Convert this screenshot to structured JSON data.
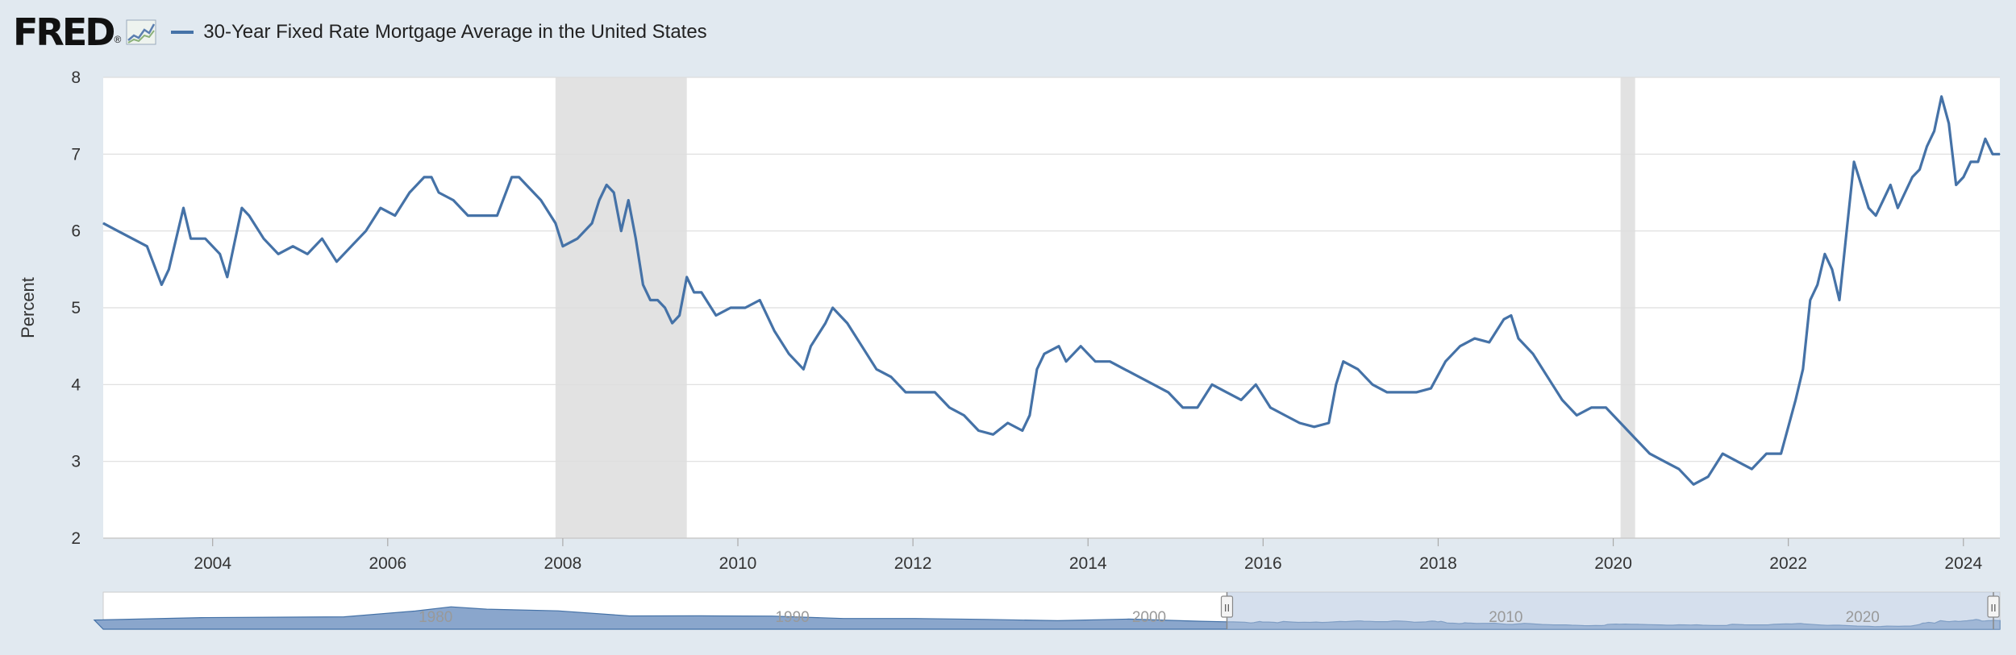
{
  "header": {
    "logo": "FRED",
    "logo_mark": "®",
    "legend_label": "30-Year Fixed Rate Mortgage Average in the United States"
  },
  "colors": {
    "series": "#4572a7",
    "recession": "#e2e2e2",
    "grid": "#dddddd",
    "background": "#e1e9f0",
    "plot": "#ffffff",
    "navigator_fill": "#8aa6cc",
    "navigator_selected": "#b3c5df"
  },
  "chart_data": {
    "type": "line",
    "title": "30-Year Fixed Rate Mortgage Average in the United States",
    "xlabel": "",
    "ylabel": "Percent",
    "xlim": [
      "2002-10",
      "2024-06"
    ],
    "ylim": [
      2,
      8
    ],
    "grid": true,
    "y_ticks": [
      2,
      3,
      4,
      5,
      6,
      7,
      8
    ],
    "x_ticks": [
      "2004",
      "2006",
      "2008",
      "2010",
      "2012",
      "2014",
      "2016",
      "2018",
      "2020",
      "2022",
      "2024"
    ],
    "recessions": [
      [
        "2007-12",
        "2009-06"
      ],
      [
        "2020-02",
        "2020-04"
      ]
    ],
    "series": [
      {
        "name": "30-Year Fixed Rate Mortgage Average in the United States",
        "x": [
          "2002-10",
          "2002-12",
          "2003-02",
          "2003-04",
          "2003-06",
          "2003-07",
          "2003-09",
          "2003-10",
          "2003-12",
          "2004-02",
          "2004-03",
          "2004-05",
          "2004-06",
          "2004-08",
          "2004-10",
          "2004-12",
          "2005-02",
          "2005-04",
          "2005-06",
          "2005-08",
          "2005-10",
          "2005-12",
          "2006-02",
          "2006-04",
          "2006-06",
          "2006-07",
          "2006-08",
          "2006-10",
          "2006-12",
          "2007-02",
          "2007-04",
          "2007-06",
          "2007-07",
          "2007-08",
          "2007-10",
          "2007-12",
          "2008-01",
          "2008-03",
          "2008-05",
          "2008-06",
          "2008-07",
          "2008-08",
          "2008-09",
          "2008-10",
          "2008-11",
          "2008-12",
          "2009-01",
          "2009-02",
          "2009-03",
          "2009-04",
          "2009-05",
          "2009-06",
          "2009-07",
          "2009-08",
          "2009-10",
          "2009-12",
          "2010-02",
          "2010-04",
          "2010-06",
          "2010-08",
          "2010-10",
          "2010-11",
          "2011-01",
          "2011-02",
          "2011-04",
          "2011-06",
          "2011-08",
          "2011-10",
          "2011-12",
          "2012-02",
          "2012-04",
          "2012-06",
          "2012-08",
          "2012-10",
          "2012-12",
          "2013-02",
          "2013-04",
          "2013-05",
          "2013-06",
          "2013-07",
          "2013-09",
          "2013-10",
          "2013-12",
          "2014-02",
          "2014-04",
          "2014-06",
          "2014-08",
          "2014-10",
          "2014-12",
          "2015-02",
          "2015-04",
          "2015-06",
          "2015-08",
          "2015-10",
          "2015-12",
          "2016-02",
          "2016-04",
          "2016-06",
          "2016-08",
          "2016-10",
          "2016-11",
          "2016-12",
          "2017-02",
          "2017-04",
          "2017-06",
          "2017-08",
          "2017-10",
          "2017-12",
          "2018-02",
          "2018-04",
          "2018-06",
          "2018-08",
          "2018-10",
          "2018-11",
          "2018-12",
          "2019-02",
          "2019-04",
          "2019-06",
          "2019-08",
          "2019-10",
          "2019-12",
          "2020-02",
          "2020-04",
          "2020-06",
          "2020-08",
          "2020-10",
          "2020-12",
          "2021-02",
          "2021-04",
          "2021-06",
          "2021-08",
          "2021-10",
          "2021-12",
          "2022-02",
          "2022-03",
          "2022-04",
          "2022-05",
          "2022-06",
          "2022-07",
          "2022-08",
          "2022-09",
          "2022-10",
          "2022-11",
          "2022-12",
          "2023-01",
          "2023-02",
          "2023-03",
          "2023-04",
          "2023-05",
          "2023-06",
          "2023-07",
          "2023-08",
          "2023-09",
          "2023-10",
          "2023-11",
          "2023-12",
          "2024-01",
          "2024-02",
          "2024-03",
          "2024-04",
          "2024-05",
          "2024-06"
        ],
        "values": [
          6.1,
          6.0,
          5.9,
          5.8,
          5.3,
          5.5,
          6.3,
          5.9,
          5.9,
          5.7,
          5.4,
          6.3,
          6.2,
          5.9,
          5.7,
          5.8,
          5.7,
          5.9,
          5.6,
          5.8,
          6.0,
          6.3,
          6.2,
          6.5,
          6.7,
          6.7,
          6.5,
          6.4,
          6.2,
          6.2,
          6.2,
          6.7,
          6.7,
          6.6,
          6.4,
          6.1,
          5.8,
          5.9,
          6.1,
          6.4,
          6.6,
          6.5,
          6.0,
          6.4,
          5.9,
          5.3,
          5.1,
          5.1,
          5.0,
          4.8,
          4.9,
          5.4,
          5.2,
          5.2,
          4.9,
          5.0,
          5.0,
          5.1,
          4.7,
          4.4,
          4.2,
          4.5,
          4.8,
          5.0,
          4.8,
          4.5,
          4.2,
          4.1,
          3.9,
          3.9,
          3.9,
          3.7,
          3.6,
          3.4,
          3.35,
          3.5,
          3.4,
          3.6,
          4.2,
          4.4,
          4.5,
          4.3,
          4.5,
          4.3,
          4.3,
          4.2,
          4.1,
          4.0,
          3.9,
          3.7,
          3.7,
          4.0,
          3.9,
          3.8,
          4.0,
          3.7,
          3.6,
          3.5,
          3.45,
          3.5,
          4.0,
          4.3,
          4.2,
          4.0,
          3.9,
          3.9,
          3.9,
          3.95,
          4.3,
          4.5,
          4.6,
          4.55,
          4.85,
          4.9,
          4.6,
          4.4,
          4.1,
          3.8,
          3.6,
          3.7,
          3.7,
          3.5,
          3.3,
          3.1,
          3.0,
          2.9,
          2.7,
          2.8,
          3.1,
          3.0,
          2.9,
          3.1,
          3.1,
          3.8,
          4.2,
          5.1,
          5.3,
          5.7,
          5.5,
          5.1,
          6.0,
          6.9,
          6.6,
          6.3,
          6.2,
          6.4,
          6.6,
          6.3,
          6.5,
          6.7,
          6.8,
          7.1,
          7.3,
          7.75,
          7.4,
          6.6,
          6.7,
          6.9,
          6.9,
          7.2,
          7.0,
          7.0
        ]
      }
    ]
  },
  "navigator": {
    "labels": [
      "1980",
      "1990",
      "2000",
      "2010",
      "2020"
    ],
    "handle_glyph": "II",
    "selection": [
      "2002-10",
      "2024-06"
    ],
    "range": [
      "1971-04",
      "2024-06"
    ]
  }
}
